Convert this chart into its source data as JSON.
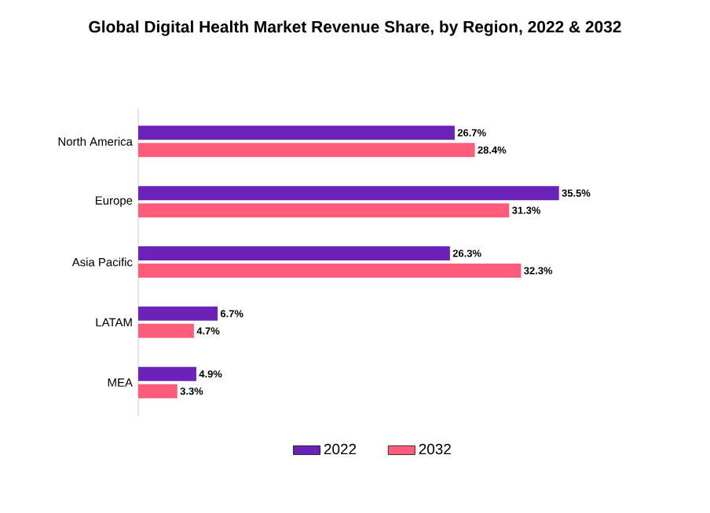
{
  "chart_data": {
    "type": "bar",
    "orientation": "horizontal",
    "title": "Global Digital Health Market Revenue Share, by Region, 2022 & 2032",
    "categories": [
      "North America",
      "Europe",
      "Asia Pacific",
      "LATAM",
      "MEA"
    ],
    "series": [
      {
        "name": "2022",
        "color": "#6a22b8",
        "values": [
          26.7,
          35.5,
          26.3,
          6.7,
          4.9
        ],
        "value_labels": [
          "26.7%",
          "35.5%",
          "26.3%",
          "6.7%",
          "4.9%"
        ]
      },
      {
        "name": "2032",
        "color": "#ff5c7c",
        "values": [
          28.4,
          31.3,
          32.3,
          4.7,
          3.3
        ],
        "value_labels": [
          "28.4%",
          "31.3%",
          "32.3%",
          "4.7%",
          "3.3%"
        ]
      }
    ],
    "legend": "bottom",
    "grid": false
  }
}
